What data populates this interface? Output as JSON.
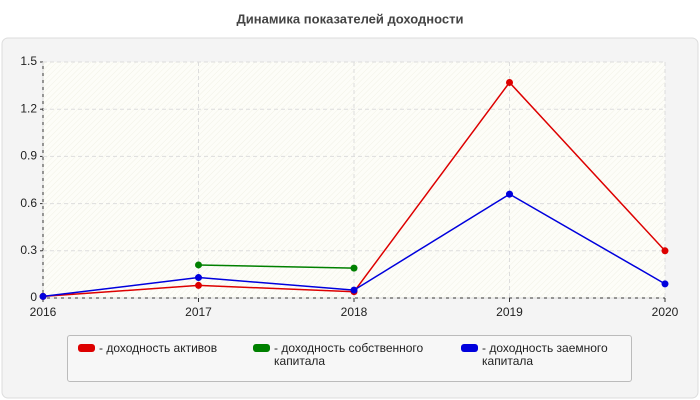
{
  "chart_data": {
    "type": "line",
    "title": "Динамика показателей доходности",
    "x": [
      2016,
      2017,
      2018,
      2019,
      2020
    ],
    "xlim": [
      2016,
      2020
    ],
    "xticks": [
      2016,
      2017,
      2018,
      2019,
      2020
    ],
    "ylim": [
      0,
      1.5
    ],
    "yticks": [
      0,
      0.3,
      0.6,
      0.9,
      1.2,
      1.5
    ],
    "grid": true,
    "series": [
      {
        "name": "- доходность активов",
        "color": "#dd0000",
        "values": [
          0.01,
          0.08,
          0.04,
          1.37,
          0.3
        ]
      },
      {
        "name": "- доходность собственного капитала",
        "color": "#008000",
        "values": [
          null,
          0.21,
          0.19,
          null,
          null
        ]
      },
      {
        "name": "- доходность заемного капитала",
        "color": "#0000dd",
        "values": [
          0.01,
          0.13,
          0.05,
          0.66,
          0.09
        ]
      }
    ]
  }
}
